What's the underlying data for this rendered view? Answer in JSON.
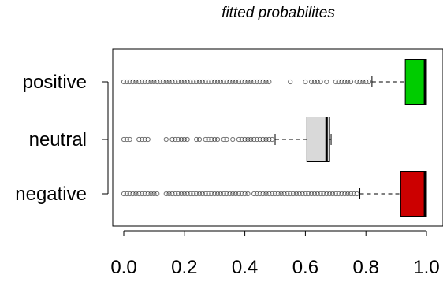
{
  "chart_data": {
    "type": "boxplot",
    "orientation": "horizontal",
    "title": "fitted probabilites",
    "xlim": [
      0.0,
      1.0
    ],
    "xticks": [
      "0.0",
      "0.2",
      "0.4",
      "0.6",
      "0.8",
      "1.0"
    ],
    "categories": [
      "positive",
      "neutral",
      "negative"
    ],
    "grid": false,
    "boxes": [
      {
        "name": "positive",
        "color": "#00cc00",
        "whisker_low": 0.82,
        "q1": 0.93,
        "median": 0.995,
        "q3": 1.0,
        "whisker_high": 1.0,
        "outliers": [
          0.0,
          0.01,
          0.02,
          0.03,
          0.04,
          0.05,
          0.06,
          0.07,
          0.08,
          0.09,
          0.1,
          0.11,
          0.12,
          0.13,
          0.14,
          0.15,
          0.16,
          0.17,
          0.18,
          0.19,
          0.2,
          0.21,
          0.22,
          0.23,
          0.24,
          0.25,
          0.26,
          0.27,
          0.28,
          0.29,
          0.3,
          0.31,
          0.32,
          0.33,
          0.34,
          0.35,
          0.36,
          0.37,
          0.38,
          0.39,
          0.4,
          0.41,
          0.42,
          0.43,
          0.44,
          0.45,
          0.46,
          0.47,
          0.48,
          0.55,
          0.6,
          0.62,
          0.63,
          0.64,
          0.65,
          0.67,
          0.7,
          0.71,
          0.72,
          0.73,
          0.74,
          0.75,
          0.77,
          0.78,
          0.79,
          0.8,
          0.81
        ]
      },
      {
        "name": "neutral",
        "color": "#d9d9d9",
        "whisker_low": 0.5,
        "q1": 0.605,
        "median": 0.67,
        "q3": 0.68,
        "whisker_high": 0.685,
        "outliers": [
          0.0,
          0.01,
          0.02,
          0.05,
          0.06,
          0.07,
          0.08,
          0.14,
          0.16,
          0.17,
          0.18,
          0.19,
          0.2,
          0.21,
          0.24,
          0.25,
          0.27,
          0.28,
          0.29,
          0.3,
          0.31,
          0.33,
          0.34,
          0.36,
          0.38,
          0.39,
          0.4,
          0.41,
          0.42,
          0.43,
          0.44,
          0.45,
          0.46,
          0.47,
          0.48,
          0.49
        ]
      },
      {
        "name": "negative",
        "color": "#cc0000",
        "whisker_low": 0.78,
        "q1": 0.915,
        "median": 0.995,
        "q3": 1.0,
        "whisker_high": 1.0,
        "outliers": [
          0.0,
          0.01,
          0.02,
          0.03,
          0.04,
          0.05,
          0.06,
          0.07,
          0.08,
          0.09,
          0.1,
          0.11,
          0.14,
          0.15,
          0.16,
          0.17,
          0.18,
          0.19,
          0.2,
          0.21,
          0.22,
          0.23,
          0.24,
          0.25,
          0.26,
          0.27,
          0.28,
          0.29,
          0.3,
          0.31,
          0.32,
          0.33,
          0.34,
          0.35,
          0.36,
          0.37,
          0.38,
          0.39,
          0.4,
          0.41,
          0.43,
          0.44,
          0.45,
          0.46,
          0.47,
          0.48,
          0.49,
          0.5,
          0.51,
          0.52,
          0.53,
          0.54,
          0.55,
          0.56,
          0.57,
          0.58,
          0.59,
          0.6,
          0.61,
          0.62,
          0.63,
          0.64,
          0.65,
          0.66,
          0.67,
          0.68,
          0.69,
          0.7,
          0.71,
          0.72,
          0.73,
          0.74,
          0.75,
          0.76,
          0.77
        ]
      }
    ]
  }
}
